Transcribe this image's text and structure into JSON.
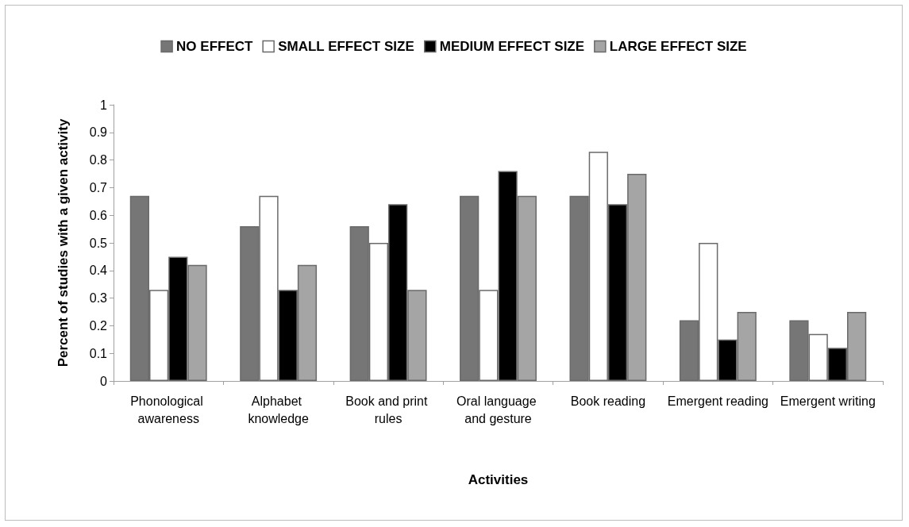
{
  "chart_data": {
    "type": "bar",
    "xlabel": "Activities",
    "ylabel": "Percent of studies with a given activity",
    "categories": [
      "Phonological awareness",
      "Alphabet knowledge",
      "Book and print rules",
      "Oral language and gesture",
      "Book reading",
      "Emergent reading",
      "Emergent writing"
    ],
    "series": [
      {
        "name": "NO EFFECT",
        "color": "#767676",
        "values": [
          0.67,
          0.56,
          0.56,
          0.67,
          0.67,
          0.22,
          0.22
        ]
      },
      {
        "name": "SMALL EFFECT SIZE",
        "color": "#ffffff",
        "values": [
          0.33,
          0.67,
          0.5,
          0.33,
          0.83,
          0.5,
          0.17
        ]
      },
      {
        "name": "MEDIUM EFFECT SIZE",
        "color": "#000000",
        "values": [
          0.45,
          0.33,
          0.64,
          0.76,
          0.64,
          0.15,
          0.12
        ]
      },
      {
        "name": "LARGE EFFECT SIZE",
        "color": "#a5a5a5",
        "values": [
          0.42,
          0.42,
          0.33,
          0.67,
          0.75,
          0.25,
          0.25
        ]
      }
    ],
    "ylim": [
      0,
      1
    ],
    "yticks": [
      0,
      0.1,
      0.2,
      0.3,
      0.4,
      0.5,
      0.6,
      0.7,
      0.8,
      0.9,
      1
    ],
    "grid": false,
    "legend": "top"
  }
}
